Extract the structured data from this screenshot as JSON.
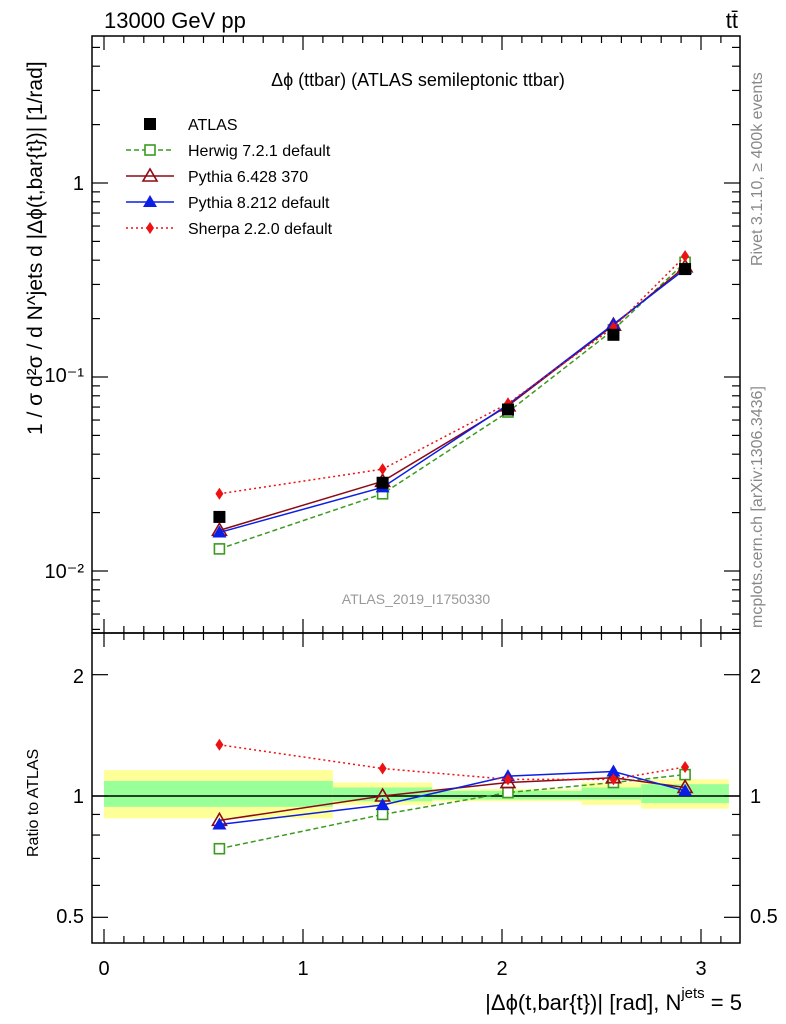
{
  "header": {
    "energy_label": "13000 GeV pp",
    "process_label": "tt̄"
  },
  "side_labels": {
    "rivet": "Rivet 3.1.10, ≥ 400k events",
    "mcplots": "mcplots.cern.ch [arXiv:1306.3436]"
  },
  "chart_data": {
    "type": "line",
    "title": "Δϕ (ttbar) (ATLAS semileptonic ttbar)",
    "analysis_id": "ATLAS_2019_I1750330",
    "xlabel": "|Δϕ(t,bar{t})| [rad], N",
    "xlabel_superscript": "jets",
    "xlabel_suffix": " = 5",
    "ylabel": "1 / σ d²σ / d N^jets d |Δϕ(t,bar{t})| [1/rad]",
    "ratio_ylabel": "Ratio to ATLAS",
    "xlim": [
      -0.1,
      3.2
    ],
    "ylim": [
      0.005,
      5
    ],
    "ratio_ylim": [
      0.4,
      2.5
    ],
    "x_ticks": [
      "0",
      "1",
      "2",
      "3"
    ],
    "y_ticks": [
      "10⁻²",
      "10⁻¹",
      "1"
    ],
    "ratio_ticks": [
      "0.5",
      "1",
      "2"
    ],
    "bin_edges": [
      0,
      1.15,
      1.65,
      2.4,
      2.7,
      3.14
    ],
    "x": [
      0.58,
      1.4,
      2.03,
      2.56,
      2.92
    ],
    "series": [
      {
        "name": "ATLAS",
        "color": "#000000",
        "marker": "square",
        "dash": "",
        "values": [
          0.019,
          0.0285,
          0.068,
          0.165,
          0.36
        ],
        "ratio": [
          1.0,
          1.0,
          1.0,
          1.0,
          1.0
        ]
      },
      {
        "name": "Herwig 7.2.1 default",
        "color": "#3a9b1e",
        "marker": "open-square",
        "dash": "5,3",
        "values": [
          0.013,
          0.025,
          0.066,
          0.175,
          0.39
        ],
        "ratio": [
          0.74,
          0.9,
          1.02,
          1.08,
          1.13
        ]
      },
      {
        "name": "Pythia 6.428 370",
        "color": "#8b0a14",
        "marker": "open-triangle",
        "dash": "",
        "values": [
          0.0162,
          0.029,
          0.071,
          0.185,
          0.37
        ],
        "ratio": [
          0.87,
          1.0,
          1.08,
          1.11,
          1.05
        ]
      },
      {
        "name": "Pythia 8.212 default",
        "color": "#0a1ee6",
        "marker": "triangle",
        "dash": "",
        "values": [
          0.0158,
          0.027,
          0.072,
          0.187,
          0.36
        ],
        "ratio": [
          0.85,
          0.95,
          1.12,
          1.15,
          1.03
        ]
      },
      {
        "name": "Sherpa 2.2.0 default",
        "color": "#ee1111",
        "marker": "diamond",
        "dash": "2,3",
        "values": [
          0.025,
          0.0335,
          0.073,
          0.18,
          0.42
        ],
        "ratio": [
          1.34,
          1.17,
          1.1,
          1.1,
          1.18
        ]
      }
    ],
    "uncertainty_bands": {
      "inner_color": "#99ff99",
      "outer_color": "#ffff99",
      "inner": [
        [
          0.94,
          1.09
        ],
        [
          0.97,
          1.05
        ],
        [
          0.98,
          1.03
        ],
        [
          0.98,
          1.05
        ],
        [
          0.96,
          1.07
        ]
      ],
      "outer": [
        [
          0.88,
          1.16
        ],
        [
          0.95,
          1.08
        ],
        [
          0.97,
          1.04
        ],
        [
          0.95,
          1.08
        ],
        [
          0.93,
          1.1
        ]
      ]
    }
  }
}
